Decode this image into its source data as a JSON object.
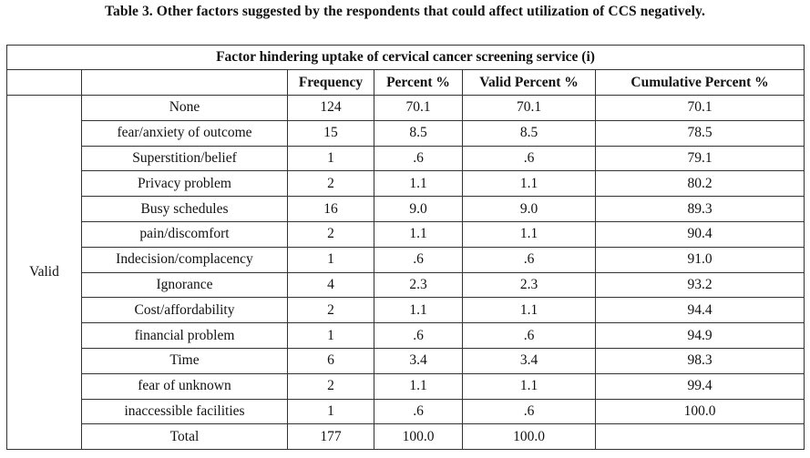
{
  "caption": "Table 3. Other factors suggested by the respondents that could affect utilization of CCS negatively.",
  "table": {
    "title": "Factor hindering uptake of cervical cancer screening service (i)",
    "columns": [
      "Frequency",
      "Percent %",
      "Valid Percent %",
      "Cumulative Percent %"
    ],
    "group_label": "Valid",
    "rows": [
      {
        "factor": "None",
        "frequency": "124",
        "percent": "70.1",
        "valid_percent": "70.1",
        "cumulative": "70.1"
      },
      {
        "factor": "fear/anxiety of outcome",
        "frequency": "15",
        "percent": "8.5",
        "valid_percent": "8.5",
        "cumulative": "78.5"
      },
      {
        "factor": "Superstition/belief",
        "frequency": "1",
        "percent": ".6",
        "valid_percent": ".6",
        "cumulative": "79.1"
      },
      {
        "factor": "Privacy problem",
        "frequency": "2",
        "percent": "1.1",
        "valid_percent": "1.1",
        "cumulative": "80.2"
      },
      {
        "factor": "Busy schedules",
        "frequency": "16",
        "percent": "9.0",
        "valid_percent": "9.0",
        "cumulative": "89.3"
      },
      {
        "factor": "pain/discomfort",
        "frequency": "2",
        "percent": "1.1",
        "valid_percent": "1.1",
        "cumulative": "90.4"
      },
      {
        "factor": "Indecision/complacency",
        "frequency": "1",
        "percent": ".6",
        "valid_percent": ".6",
        "cumulative": "91.0"
      },
      {
        "factor": "Ignorance",
        "frequency": "4",
        "percent": "2.3",
        "valid_percent": "2.3",
        "cumulative": "93.2"
      },
      {
        "factor": "Cost/affordability",
        "frequency": "2",
        "percent": "1.1",
        "valid_percent": "1.1",
        "cumulative": "94.4"
      },
      {
        "factor": "financial problem",
        "frequency": "1",
        "percent": ".6",
        "valid_percent": ".6",
        "cumulative": "94.9"
      },
      {
        "factor": "Time",
        "frequency": "6",
        "percent": "3.4",
        "valid_percent": "3.4",
        "cumulative": "98.3"
      },
      {
        "factor": "fear of unknown",
        "frequency": "2",
        "percent": "1.1",
        "valid_percent": "1.1",
        "cumulative": "99.4"
      },
      {
        "factor": "inaccessible facilities",
        "frequency": "1",
        "percent": ".6",
        "valid_percent": ".6",
        "cumulative": "100.0"
      },
      {
        "factor": "Total",
        "frequency": "177",
        "percent": "100.0",
        "valid_percent": "100.0",
        "cumulative": ""
      }
    ]
  }
}
